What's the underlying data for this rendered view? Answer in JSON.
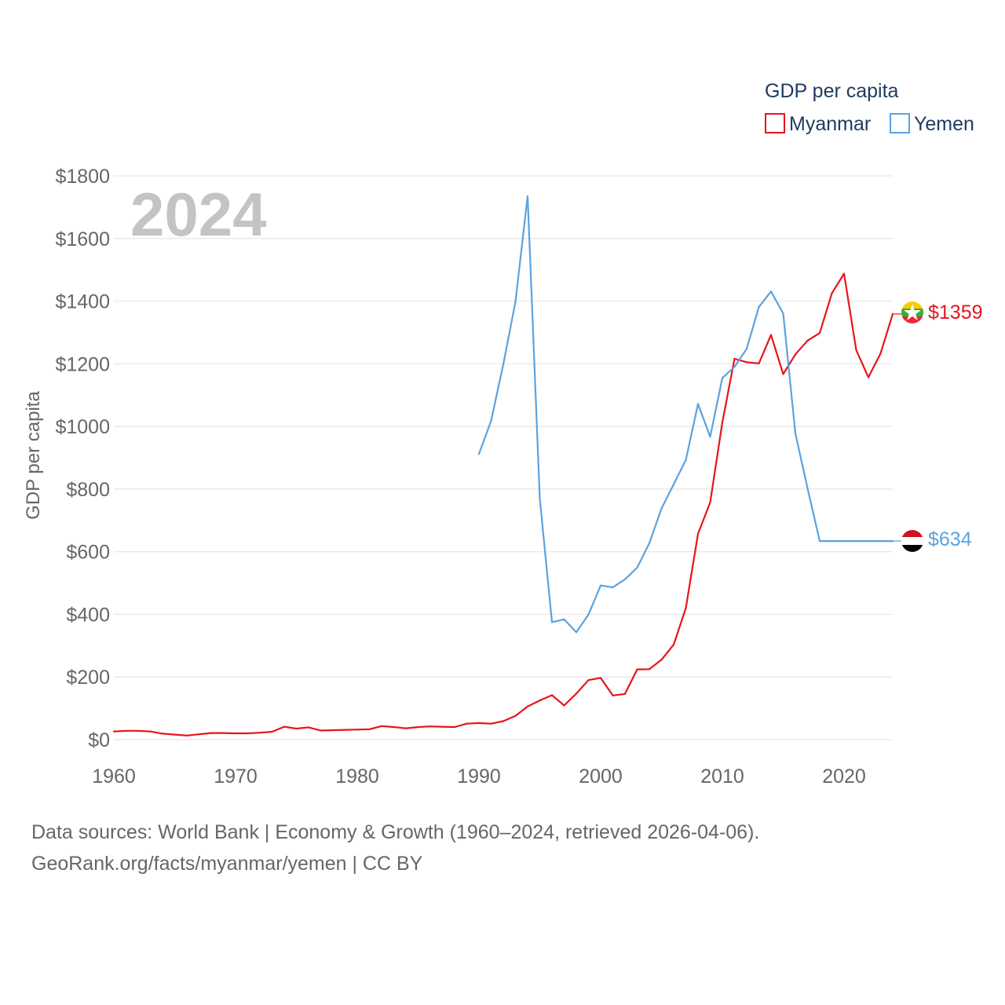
{
  "chart_data": {
    "type": "line",
    "year_label": "2024",
    "legend_title": "GDP per capita",
    "ylabel": "GDP per capita",
    "xlabel": "",
    "xlim": [
      1960,
      2024
    ],
    "ylim": [
      0,
      1800
    ],
    "x_ticks": [
      1960,
      1970,
      1980,
      1990,
      2000,
      2010,
      2020
    ],
    "x_tick_labels": [
      "1960",
      "1970",
      "1980",
      "1990",
      "2000",
      "2010",
      "2020"
    ],
    "y_ticks": [
      0,
      200,
      400,
      600,
      800,
      1000,
      1200,
      1400,
      1600,
      1800
    ],
    "y_tick_labels": [
      "$0",
      "$200",
      "$400",
      "$600",
      "$800",
      "$1000",
      "$1200",
      "$1400",
      "$1600",
      "$1800"
    ],
    "grid": true,
    "legend_position": "top-right",
    "series": [
      {
        "name": "Myanmar",
        "color": "#e8141b",
        "icon": "myanmar-flag-icon",
        "end_label": "$1359",
        "points": [
          [
            1960,
            26
          ],
          [
            1961,
            28
          ],
          [
            1962,
            28
          ],
          [
            1963,
            26
          ],
          [
            1964,
            19
          ],
          [
            1965,
            16
          ],
          [
            1966,
            13
          ],
          [
            1967,
            17
          ],
          [
            1968,
            21
          ],
          [
            1969,
            21
          ],
          [
            1970,
            20
          ],
          [
            1971,
            20
          ],
          [
            1972,
            22
          ],
          [
            1973,
            25
          ],
          [
            1974,
            41
          ],
          [
            1975,
            35
          ],
          [
            1976,
            39
          ],
          [
            1977,
            29
          ],
          [
            1978,
            30
          ],
          [
            1979,
            31
          ],
          [
            1980,
            32
          ],
          [
            1981,
            33
          ],
          [
            1982,
            43
          ],
          [
            1983,
            40
          ],
          [
            1984,
            36
          ],
          [
            1985,
            40
          ],
          [
            1986,
            42
          ],
          [
            1987,
            41
          ],
          [
            1988,
            40
          ],
          [
            1989,
            51
          ],
          [
            1990,
            53
          ],
          [
            1991,
            51
          ],
          [
            1992,
            59
          ],
          [
            1993,
            76
          ],
          [
            1994,
            106
          ],
          [
            1995,
            125
          ],
          [
            1996,
            142
          ],
          [
            1997,
            109
          ],
          [
            1998,
            147
          ],
          [
            1999,
            190
          ],
          [
            2000,
            197
          ],
          [
            2001,
            141
          ],
          [
            2002,
            146
          ],
          [
            2003,
            224
          ],
          [
            2004,
            225
          ],
          [
            2005,
            255
          ],
          [
            2006,
            303
          ],
          [
            2007,
            420
          ],
          [
            2008,
            657
          ],
          [
            2009,
            757
          ],
          [
            2010,
            1013
          ],
          [
            2011,
            1216
          ],
          [
            2012,
            1205
          ],
          [
            2013,
            1201
          ],
          [
            2014,
            1292
          ],
          [
            2015,
            1167
          ],
          [
            2016,
            1230
          ],
          [
            2017,
            1274
          ],
          [
            2018,
            1298
          ],
          [
            2019,
            1425
          ],
          [
            2020,
            1488
          ],
          [
            2021,
            1244
          ],
          [
            2022,
            1157
          ],
          [
            2023,
            1233
          ],
          [
            2024,
            1359
          ]
        ]
      },
      {
        "name": "Yemen",
        "color": "#5aa3e0",
        "icon": "yemen-flag-icon",
        "end_label": "$634",
        "points": [
          [
            1990,
            912
          ],
          [
            1991,
            1018
          ],
          [
            1992,
            1198
          ],
          [
            1993,
            1398
          ],
          [
            1994,
            1735
          ],
          [
            1995,
            770
          ],
          [
            1996,
            375
          ],
          [
            1997,
            384
          ],
          [
            1998,
            343
          ],
          [
            1999,
            399
          ],
          [
            2000,
            492
          ],
          [
            2001,
            486
          ],
          [
            2002,
            512
          ],
          [
            2003,
            549
          ],
          [
            2004,
            627
          ],
          [
            2005,
            738
          ],
          [
            2006,
            815
          ],
          [
            2007,
            893
          ],
          [
            2008,
            1072
          ],
          [
            2009,
            967
          ],
          [
            2010,
            1155
          ],
          [
            2011,
            1190
          ],
          [
            2012,
            1248
          ],
          [
            2013,
            1381
          ],
          [
            2014,
            1431
          ],
          [
            2015,
            1361
          ],
          [
            2016,
            978
          ],
          [
            2017,
            803
          ],
          [
            2018,
            634
          ],
          [
            2019,
            634
          ],
          [
            2020,
            634
          ],
          [
            2021,
            634
          ],
          [
            2022,
            634
          ],
          [
            2023,
            634
          ],
          [
            2024,
            634
          ]
        ]
      }
    ]
  },
  "footer": {
    "line1": "Data sources: World Bank | Economy & Growth (1960–2024, retrieved 2026-04-06).",
    "line2": "GeoRank.org/facts/myanmar/yemen | CC BY"
  }
}
